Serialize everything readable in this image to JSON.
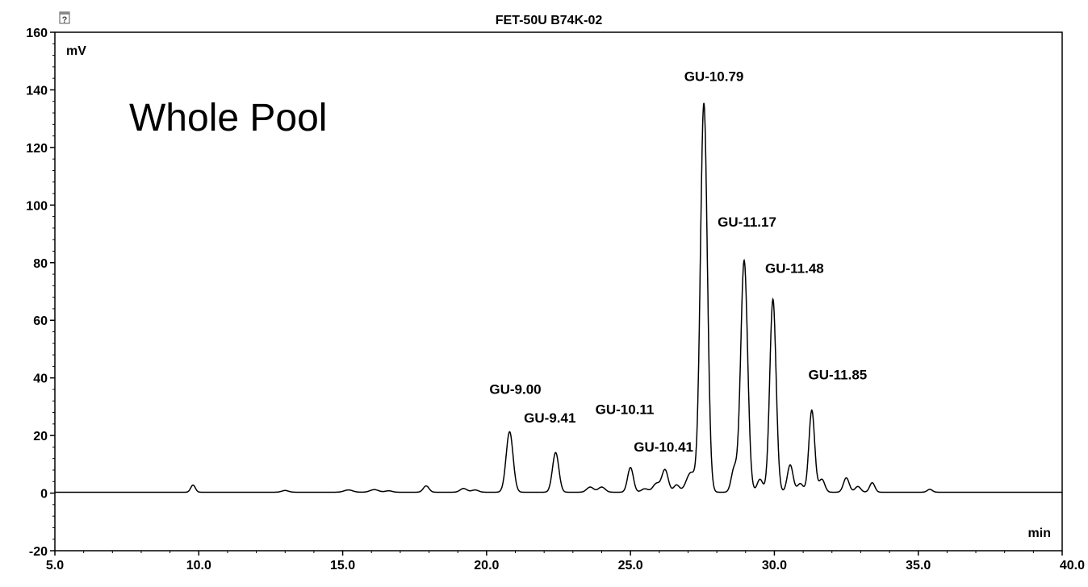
{
  "chart_data": {
    "type": "line",
    "title": "FET-50U  B74K-02",
    "ylabel": "mV",
    "xlabel": "min",
    "annotation": "Whole Pool",
    "xlim": [
      5.0,
      40.0
    ],
    "ylim": [
      -20,
      160
    ],
    "x_ticks": [
      "5.0",
      "10.0",
      "15.0",
      "20.0",
      "25.0",
      "30.0",
      "35.0",
      "40.0"
    ],
    "y_ticks": [
      "-20",
      "0",
      "20",
      "40",
      "60",
      "80",
      "100",
      "120",
      "140",
      "160"
    ],
    "baseline": 0.3,
    "peaks": [
      {
        "x": 9.8,
        "y": 2.5,
        "w": 0.08
      },
      {
        "x": 13.0,
        "y": 0.6,
        "w": 0.12
      },
      {
        "x": 15.2,
        "y": 0.8,
        "w": 0.15
      },
      {
        "x": 16.1,
        "y": 0.9,
        "w": 0.15
      },
      {
        "x": 16.6,
        "y": 0.5,
        "w": 0.12
      },
      {
        "x": 17.9,
        "y": 2.2,
        "w": 0.1
      },
      {
        "x": 19.2,
        "y": 1.3,
        "w": 0.12
      },
      {
        "x": 19.6,
        "y": 0.8,
        "w": 0.12
      },
      {
        "x": 20.8,
        "y": 21.0,
        "w": 0.12
      },
      {
        "x": 22.4,
        "y": 13.8,
        "w": 0.11
      },
      {
        "x": 23.6,
        "y": 1.8,
        "w": 0.12
      },
      {
        "x": 24.0,
        "y": 1.8,
        "w": 0.12
      },
      {
        "x": 25.0,
        "y": 8.6,
        "w": 0.1
      },
      {
        "x": 25.5,
        "y": 1.2,
        "w": 0.12
      },
      {
        "x": 25.9,
        "y": 3.0,
        "w": 0.12
      },
      {
        "x": 26.2,
        "y": 7.8,
        "w": 0.11
      },
      {
        "x": 26.6,
        "y": 2.5,
        "w": 0.1
      },
      {
        "x": 27.1,
        "y": 6.8,
        "w": 0.16
      },
      {
        "x": 27.55,
        "y": 135.0,
        "w": 0.12
      },
      {
        "x": 28.6,
        "y": 8.0,
        "w": 0.1
      },
      {
        "x": 28.95,
        "y": 80.5,
        "w": 0.12
      },
      {
        "x": 29.5,
        "y": 4.5,
        "w": 0.1
      },
      {
        "x": 29.95,
        "y": 67.0,
        "w": 0.11
      },
      {
        "x": 30.55,
        "y": 9.5,
        "w": 0.1
      },
      {
        "x": 30.9,
        "y": 3.0,
        "w": 0.1
      },
      {
        "x": 31.3,
        "y": 28.5,
        "w": 0.1
      },
      {
        "x": 31.65,
        "y": 4.5,
        "w": 0.1
      },
      {
        "x": 32.5,
        "y": 5.0,
        "w": 0.1
      },
      {
        "x": 32.9,
        "y": 2.0,
        "w": 0.1
      },
      {
        "x": 33.4,
        "y": 3.3,
        "w": 0.09
      },
      {
        "x": 35.4,
        "y": 1.0,
        "w": 0.09
      }
    ],
    "peak_labels": [
      {
        "text": "GU-9.00",
        "x": 21.0,
        "y": 34.5
      },
      {
        "text": "GU-9.41",
        "x": 22.2,
        "y": 24.5
      },
      {
        "text": "GU-10.11",
        "x": 24.8,
        "y": 27.5
      },
      {
        "text": "GU-10.41",
        "x": 26.15,
        "y": 14.5
      },
      {
        "text": "GU-10.79",
        "x": 27.9,
        "y": 143.0
      },
      {
        "text": "GU-11.17",
        "x": 29.05,
        "y": 92.5
      },
      {
        "text": "GU-11.48",
        "x": 30.7,
        "y": 76.5
      },
      {
        "text": "GU-11.85",
        "x": 32.2,
        "y": 39.5
      }
    ]
  }
}
